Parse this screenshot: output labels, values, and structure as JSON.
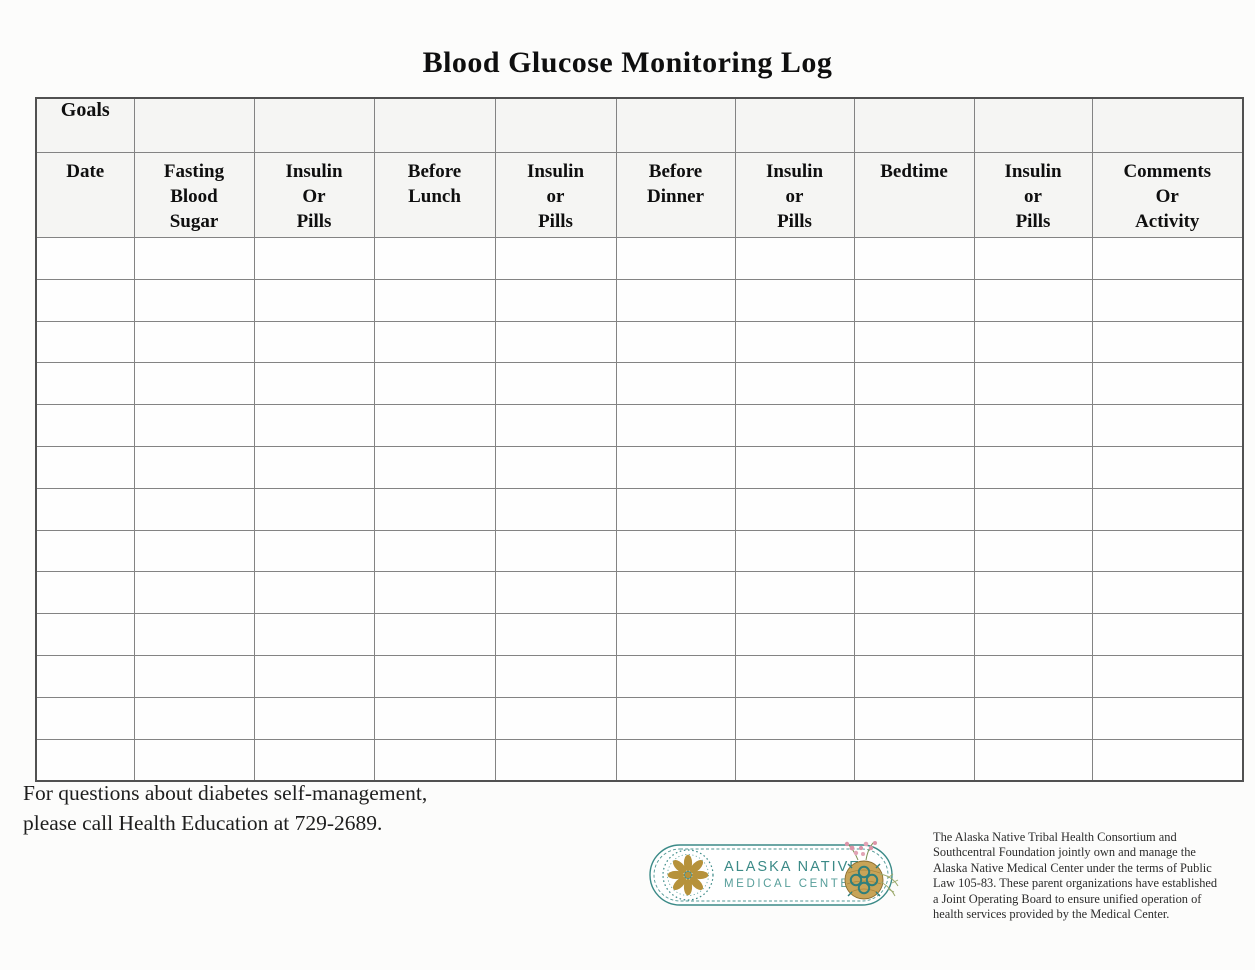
{
  "title": "Blood Glucose Monitoring Log",
  "table": {
    "goals_label": "Goals",
    "columns": [
      "Date",
      "Fasting\nBlood\nSugar",
      "Insulin\nOr\nPills",
      "Before\nLunch",
      "Insulin\nor\nPills",
      "Before\nDinner",
      "Insulin\nor\nPills",
      "Bedtime",
      "Insulin\nor\nPills",
      "Comments\nOr\nActivity"
    ],
    "body_row_count": 13
  },
  "footer": {
    "line1": "For questions about diabetes self-management,",
    "line2": "please call Health Education at 729-2689."
  },
  "logo": {
    "line1": "ALASKA NATIVE",
    "line2": "MEDICAL CENTER",
    "teal": "#3b8a87",
    "light_teal": "#579e9a",
    "gold": "#b6923b",
    "tan": "#c8a458",
    "pink": "#db94a8"
  },
  "fine_print": {
    "lines": [
      "The Alaska Native Tribal Health Consortium and",
      "Southcentral Foundation jointly own and manage the",
      "Alaska Native Medical Center under the terms of Public",
      "Law 105-83.  These parent organizations have established",
      "a Joint Operating Board to ensure unified operation of",
      "health services provided by the Medical Center."
    ]
  }
}
